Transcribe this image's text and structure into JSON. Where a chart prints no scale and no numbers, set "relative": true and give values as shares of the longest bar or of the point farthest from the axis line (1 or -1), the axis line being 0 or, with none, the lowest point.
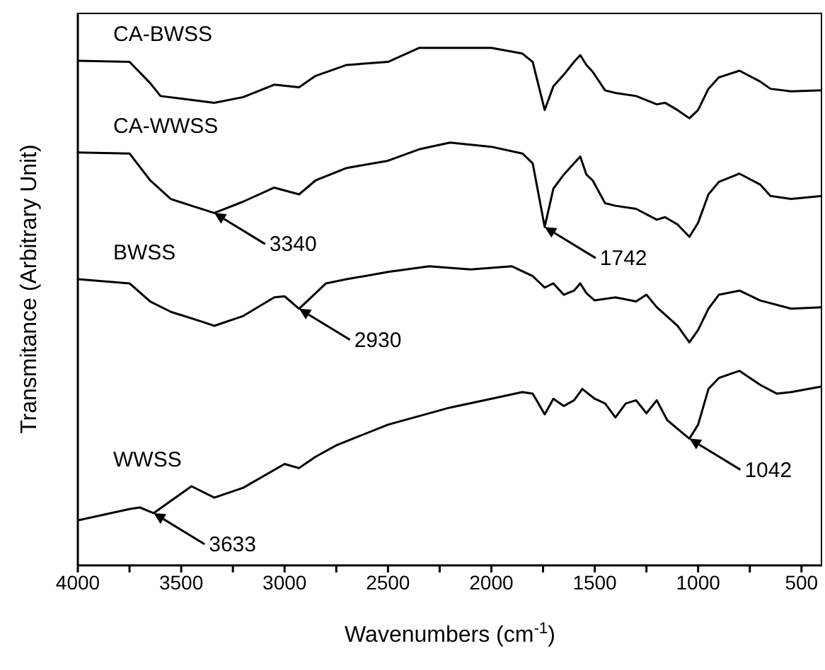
{
  "chart_data": {
    "type": "line",
    "relative": true,
    "xlabel": "Wavenumbers (cm$^{-1}$)",
    "ylabel": "Transmitance (Arbitrary Unit)",
    "xlim": [
      4000,
      400
    ],
    "xticks": [
      4000,
      {
        "value": 3750,
        "label": null
      },
      3500,
      {
        "value": 3250,
        "label": null
      },
      3000,
      {
        "value": 2750,
        "label": null
      },
      2500,
      {
        "value": 2250,
        "label": null
      },
      2000,
      {
        "value": 1750,
        "label": null
      },
      1500,
      {
        "value": 1250,
        "label": null
      },
      1000,
      {
        "value": 750,
        "label": null
      },
      500
    ],
    "legend": false,
    "grid": false,
    "marker": "none",
    "line_style": "solid",
    "series": [
      {
        "name": "CA-BWSS",
        "color": "#000000",
        "x": [
          4000,
          3750,
          3650,
          3600,
          3500,
          3340,
          3200,
          3050,
          2930,
          2850,
          2700,
          2500,
          2350,
          2200,
          2000,
          1850,
          1800,
          1742,
          1700,
          1650,
          1600,
          1570,
          1540,
          1510,
          1450,
          1400,
          1300,
          1200,
          1160,
          1100,
          1042,
          1000,
          950,
          900,
          800,
          700,
          650,
          550,
          400
        ],
        "values": [
          0.975,
          0.973,
          0.932,
          0.907,
          0.902,
          0.894,
          0.905,
          0.929,
          0.924,
          0.946,
          0.967,
          0.973,
          1.0,
          1.0,
          1.0,
          0.989,
          0.973,
          0.88,
          0.926,
          0.948,
          0.973,
          0.986,
          0.967,
          0.954,
          0.918,
          0.913,
          0.907,
          0.891,
          0.894,
          0.88,
          0.864,
          0.88,
          0.921,
          0.943,
          0.956,
          0.935,
          0.921,
          0.916,
          0.918
        ]
      },
      {
        "name": "CA-WWSS",
        "color": "#000000",
        "x": [
          4000,
          3750,
          3650,
          3550,
          3450,
          3340,
          3200,
          3050,
          2930,
          2850,
          2700,
          2500,
          2350,
          2200,
          2000,
          1850,
          1800,
          1742,
          1700,
          1650,
          1600,
          1570,
          1540,
          1510,
          1450,
          1400,
          1300,
          1200,
          1160,
          1100,
          1042,
          1000,
          950,
          900,
          800,
          700,
          650,
          550,
          400
        ],
        "values": [
          0.798,
          0.796,
          0.744,
          0.708,
          0.695,
          0.681,
          0.703,
          0.73,
          0.717,
          0.744,
          0.768,
          0.782,
          0.804,
          0.817,
          0.809,
          0.796,
          0.777,
          0.654,
          0.728,
          0.755,
          0.777,
          0.79,
          0.755,
          0.744,
          0.7,
          0.695,
          0.689,
          0.668,
          0.673,
          0.659,
          0.635,
          0.662,
          0.717,
          0.741,
          0.757,
          0.736,
          0.714,
          0.708,
          0.714
        ]
      },
      {
        "name": "BWSS",
        "color": "#000000",
        "x": [
          4000,
          3750,
          3650,
          3550,
          3400,
          3340,
          3200,
          3050,
          3000,
          2930,
          2850,
          2800,
          2700,
          2500,
          2300,
          2100,
          1900,
          1800,
          1742,
          1700,
          1650,
          1600,
          1570,
          1540,
          1500,
          1400,
          1300,
          1250,
          1200,
          1100,
          1042,
          1000,
          950,
          900,
          800,
          700,
          550,
          400
        ],
        "values": [
          0.553,
          0.545,
          0.51,
          0.49,
          0.471,
          0.463,
          0.482,
          0.518,
          0.52,
          0.496,
          0.526,
          0.545,
          0.553,
          0.567,
          0.578,
          0.572,
          0.578,
          0.559,
          0.537,
          0.545,
          0.523,
          0.531,
          0.545,
          0.526,
          0.512,
          0.518,
          0.51,
          0.523,
          0.499,
          0.463,
          0.431,
          0.455,
          0.496,
          0.523,
          0.531,
          0.512,
          0.496,
          0.499
        ]
      },
      {
        "name": "WWSS",
        "color": "#000000",
        "x": [
          4000,
          3750,
          3700,
          3633,
          3450,
          3340,
          3200,
          3000,
          2930,
          2850,
          2750,
          2500,
          2200,
          2000,
          1850,
          1800,
          1742,
          1700,
          1650,
          1600,
          1560,
          1500,
          1450,
          1400,
          1350,
          1300,
          1250,
          1200,
          1150,
          1100,
          1042,
          1000,
          950,
          900,
          800,
          700,
          620,
          550,
          400
        ],
        "values": [
          0.087,
          0.109,
          0.112,
          0.101,
          0.153,
          0.131,
          0.15,
          0.196,
          0.188,
          0.21,
          0.232,
          0.272,
          0.305,
          0.322,
          0.335,
          0.332,
          0.292,
          0.322,
          0.308,
          0.319,
          0.341,
          0.322,
          0.313,
          0.286,
          0.313,
          0.319,
          0.294,
          0.319,
          0.281,
          0.264,
          0.245,
          0.272,
          0.341,
          0.362,
          0.376,
          0.349,
          0.332,
          0.335,
          0.346
        ]
      }
    ],
    "annotations": [
      {
        "text": "3340",
        "x": 3340,
        "y": 0.681
      },
      {
        "text": "1742",
        "x": 1742,
        "y": 0.654
      },
      {
        "text": "2930",
        "x": 2930,
        "y": 0.496
      },
      {
        "text": "1042",
        "x": 1042,
        "y": 0.245
      },
      {
        "text": "3633",
        "x": 3633,
        "y": 0.101
      }
    ]
  }
}
